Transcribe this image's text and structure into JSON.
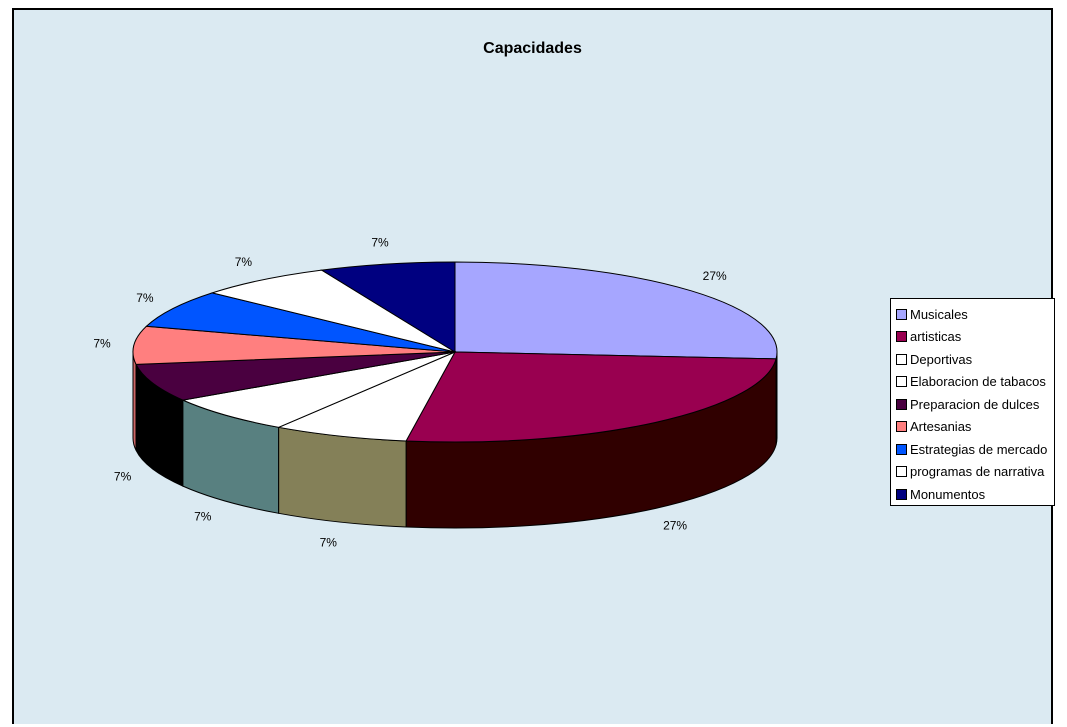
{
  "chart_data": {
    "type": "pie",
    "style": "3d",
    "title": "Capacidades",
    "legend_position": "right",
    "categories": [
      "Musicales",
      "artisticas",
      "Deportivas",
      "Elaboracion de tabacos",
      "Preparacion de dulces",
      "Artesanias",
      "Estrategias de mercado",
      "programas de narrativa",
      "Monumentos"
    ],
    "values": [
      27,
      27,
      7,
      7,
      7,
      7,
      7,
      7,
      7
    ],
    "labels": [
      "27%",
      "27%",
      "7%",
      "7%",
      "7%",
      "7%",
      "7%",
      "7%",
      "7%"
    ],
    "colors": [
      "#a6a6ff",
      "#990050",
      "#ffffff",
      "#ffffff",
      "#4a0040",
      "#ff7f7f",
      "#0055ff",
      "#ffffff",
      "#000080"
    ],
    "side_colors": [
      "#9999ee",
      "#300000",
      "#848058",
      "#588080",
      "#000000",
      "#cc6666",
      "#0044cc",
      "#cccccc",
      "#000060"
    ]
  }
}
